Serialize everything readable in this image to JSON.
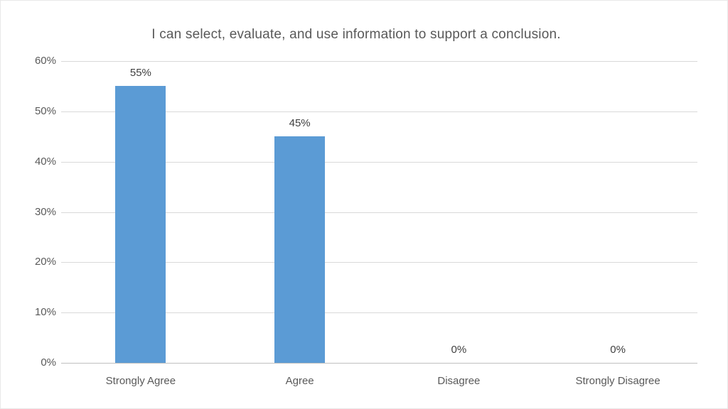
{
  "chart_data": {
    "type": "bar",
    "title": "I can select, evaluate, and use information to support a conclusion.",
    "categories": [
      "Strongly Agree",
      "Agree",
      "Disagree",
      "Strongly Disagree"
    ],
    "values": [
      55,
      45,
      0,
      0
    ],
    "data_labels": [
      "55%",
      "45%",
      "0%",
      "0%"
    ],
    "y_ticks": [
      {
        "value": 0,
        "label": "0%"
      },
      {
        "value": 10,
        "label": "10%"
      },
      {
        "value": 20,
        "label": "20%"
      },
      {
        "value": 30,
        "label": "30%"
      },
      {
        "value": 40,
        "label": "40%"
      },
      {
        "value": 50,
        "label": "50%"
      },
      {
        "value": 60,
        "label": "60%"
      }
    ],
    "ylim": [
      0,
      60
    ],
    "xlabel": "",
    "ylabel": "",
    "grid": true,
    "legend": false,
    "colors": {
      "bar": "#5b9bd5",
      "title_text": "#595959",
      "axis_text": "#595959",
      "data_label_text": "#404040",
      "gridline": "#d9d9d9",
      "axis_line": "#bfbfbf",
      "background": "#ffffff"
    }
  }
}
